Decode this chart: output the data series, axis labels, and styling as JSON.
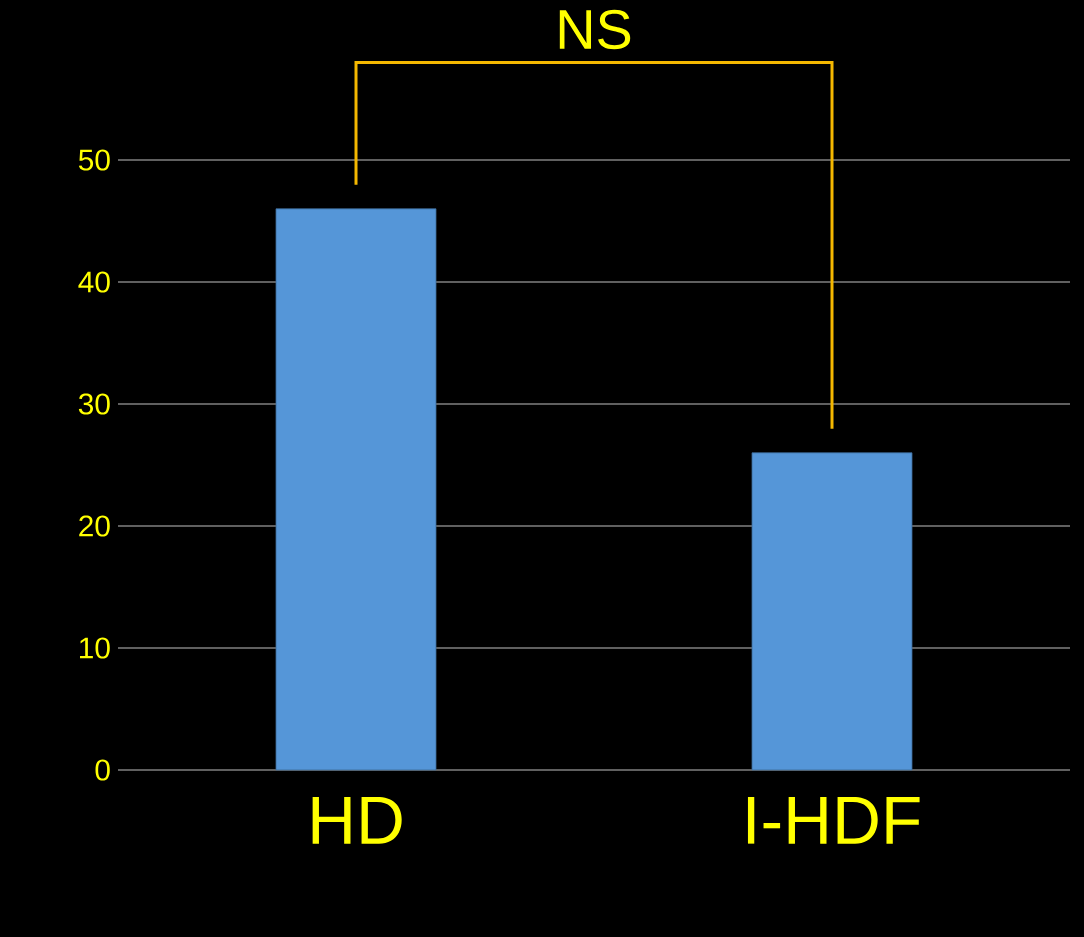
{
  "chart_data": {
    "type": "bar",
    "categories": [
      "HD",
      "I-HDF"
    ],
    "values": [
      46,
      26
    ],
    "color": "#5596d8",
    "ylim": [
      0,
      50
    ],
    "yticks": [
      0,
      10,
      20,
      30,
      40,
      50
    ],
    "grid": "y",
    "annotations": [
      "NS"
    ]
  }
}
